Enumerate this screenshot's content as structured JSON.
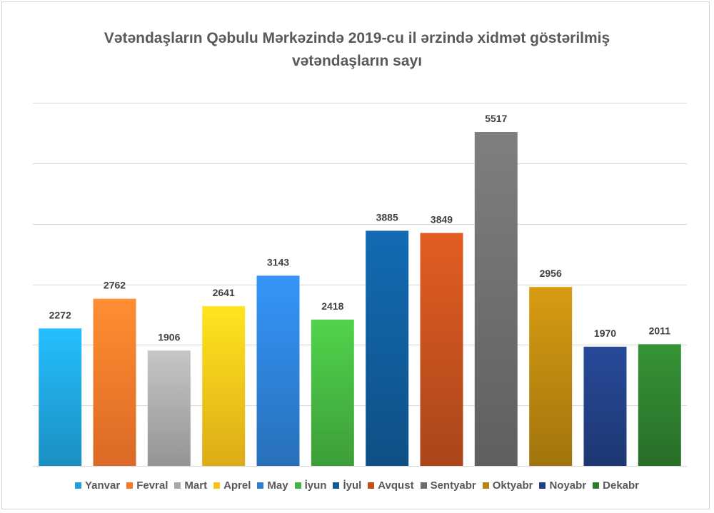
{
  "chart_data": {
    "type": "bar",
    "title_line1": "Vətəndaşların Qəbulu Mərkəzində 2019-cu il ərzində xidmət göstərilmiş",
    "title_line2": "vətəndaşların sayı",
    "categories": [
      "Yanvar",
      "Fevral",
      "Mart",
      "Aprel",
      "May",
      "İyun",
      "İyul",
      "Avqust",
      "Sentyabr",
      "Oktyabr",
      "Noyabr",
      "Dekabr"
    ],
    "values": [
      2272,
      2762,
      1906,
      2641,
      3143,
      2418,
      3885,
      3849,
      5517,
      2956,
      1970,
      2011
    ],
    "value_labels": [
      "2272",
      "2762",
      "1906",
      "2641",
      "3143",
      "2418",
      "3885",
      "3849",
      "5517",
      "2956",
      "1970",
      "2011"
    ],
    "colors": [
      "#1fa2dc",
      "#f8782a",
      "#a8a8a8",
      "#fbc21a",
      "#2d7fd3",
      "#45b440",
      "#105b98",
      "#c04f1e",
      "#6c6c6c",
      "#b7840f",
      "#213f82",
      "#2e7d2e"
    ],
    "ylim": [
      0,
      6000
    ],
    "grid": true,
    "legend_position": "bottom"
  }
}
